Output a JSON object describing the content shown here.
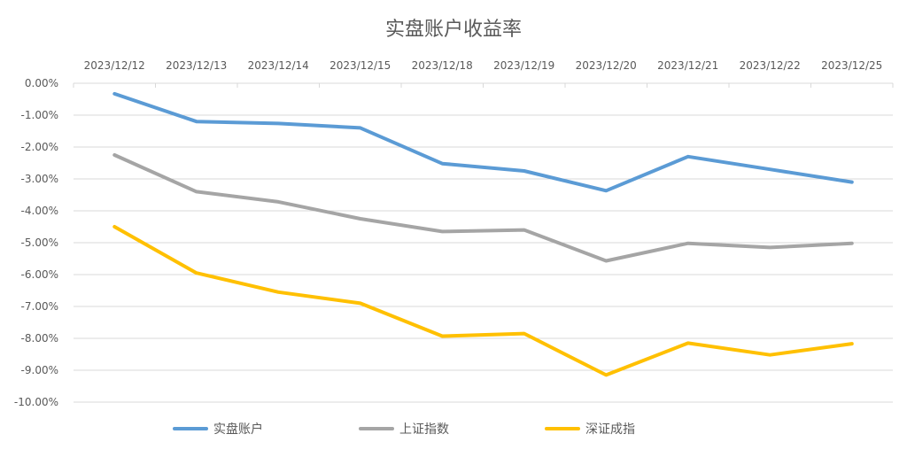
{
  "chart_data": {
    "type": "line",
    "title": "实盘账户收益率",
    "categories": [
      "2023/12/12",
      "2023/12/13",
      "2023/12/14",
      "2023/12/15",
      "2023/12/18",
      "2023/12/19",
      "2023/12/20",
      "2023/12/21",
      "2023/12/22",
      "2023/12/25"
    ],
    "yticks": [
      "0.00%",
      "-1.00%",
      "-2.00%",
      "-3.00%",
      "-4.00%",
      "-5.00%",
      "-6.00%",
      "-7.00%",
      "-8.00%",
      "-9.00%",
      "-10.00%"
    ],
    "ylim": [
      -10,
      0
    ],
    "y_unit": "%",
    "x_axis_position": "top",
    "grid": true,
    "legend_position": "bottom",
    "series": [
      {
        "name": "实盘账户",
        "color": "#5B9BD5",
        "values": [
          -0.33,
          -1.2,
          -1.26,
          -1.4,
          -2.52,
          -2.75,
          -3.37,
          -2.3,
          -2.7,
          -3.1
        ]
      },
      {
        "name": "上证指数",
        "color": "#A5A5A5",
        "values": [
          -2.25,
          -3.4,
          -3.72,
          -4.25,
          -4.65,
          -4.6,
          -5.57,
          -5.02,
          -5.15,
          -5.02
        ]
      },
      {
        "name": "深证成指",
        "color": "#FFC000",
        "values": [
          -4.5,
          -5.95,
          -6.55,
          -6.9,
          -7.93,
          -7.85,
          -9.15,
          -8.15,
          -8.52,
          -8.17
        ]
      }
    ]
  }
}
